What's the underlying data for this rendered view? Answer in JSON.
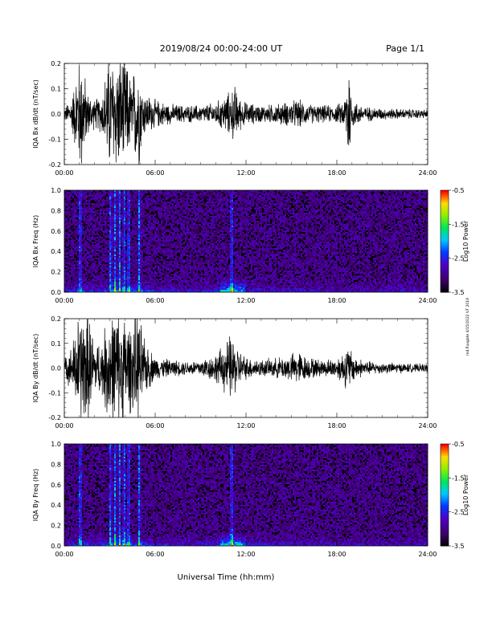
{
  "header": {
    "title": "2019/08/24  00:00-24:00 UT",
    "page": "Page 1/1"
  },
  "xaxis": {
    "label": "Universal Time (hh:mm)",
    "range_hours": [
      0,
      24
    ],
    "ticks": [
      0,
      6,
      12,
      18,
      24
    ],
    "tick_labels": [
      "00:00",
      "06:00",
      "12:00",
      "18:00",
      "24:00"
    ]
  },
  "side_note": "md.fluxgate 4/15/2022 UT 2019",
  "chart_data": [
    {
      "type": "line",
      "ylabel": "IQA Bx dB/dt (nT/sec)",
      "ylim": [
        -0.2,
        0.2
      ],
      "yticks": [
        -0.2,
        -0.1,
        0.0,
        0.1,
        0.2
      ],
      "ytick_labels": [
        "-0.2",
        "-0.1",
        "0.0",
        "0.1",
        "0.2"
      ],
      "grid": false,
      "series": [
        {
          "x": [
            0,
            0.5,
            1.0,
            1.2,
            1.5,
            2.0,
            2.5,
            2.9,
            3.2,
            3.6,
            4.0,
            4.4,
            4.9,
            5.2,
            6.0,
            7.0,
            8.0,
            9.0,
            10.0,
            10.5,
            11.0,
            11.3,
            11.5,
            12.0,
            13.0,
            14.0,
            15.0,
            15.5,
            16.0,
            17.0,
            18.0,
            18.5,
            18.8,
            19.0,
            19.5,
            20.0,
            21.0,
            22.0,
            23.0,
            24.0
          ],
          "amplitude": [
            0.02,
            0.06,
            0.2,
            0.2,
            0.08,
            0.05,
            0.07,
            0.2,
            0.2,
            0.2,
            0.2,
            0.12,
            0.2,
            0.08,
            0.05,
            0.035,
            0.03,
            0.03,
            0.04,
            0.06,
            0.08,
            0.1,
            0.06,
            0.04,
            0.03,
            0.035,
            0.045,
            0.05,
            0.035,
            0.03,
            0.03,
            0.05,
            0.2,
            0.05,
            0.035,
            0.025,
            0.02,
            0.018,
            0.017,
            0.015
          ]
        }
      ]
    },
    {
      "type": "heatmap",
      "ylabel": "IQA Bx Freq (Hz)",
      "ylim": [
        0.0,
        1.0
      ],
      "yticks": [
        0.0,
        0.2,
        0.4,
        0.6,
        0.8,
        1.0
      ],
      "ytick_labels": [
        "0.0",
        "0.2",
        "0.4",
        "0.6",
        "0.8",
        "1.0"
      ],
      "colorbar": {
        "label": "Log10 Power",
        "range": [
          -3.5,
          -0.5
        ],
        "ticks": [
          -0.5,
          -1.5,
          -2.5,
          -3.5
        ],
        "tick_labels": [
          "-0.5",
          "-1.5",
          "-2.5",
          "-3.5"
        ]
      },
      "bursts_hours": [
        1.0,
        3.0,
        3.3,
        3.6,
        3.9,
        4.2,
        4.9,
        11.0
      ]
    },
    {
      "type": "line",
      "ylabel": "IQA By dB/dt (nT/sec)",
      "ylim": [
        -0.2,
        0.2
      ],
      "yticks": [
        -0.2,
        -0.1,
        0.0,
        0.1,
        0.2
      ],
      "ytick_labels": [
        "-0.2",
        "-0.1",
        "0.0",
        "0.1",
        "0.2"
      ],
      "grid": false,
      "series": [
        {
          "x": [
            0,
            0.5,
            1.0,
            1.3,
            1.6,
            2.0,
            2.5,
            2.9,
            3.2,
            3.6,
            4.0,
            4.4,
            4.9,
            5.3,
            6.0,
            7.0,
            8.0,
            9.0,
            10.0,
            10.5,
            11.0,
            11.3,
            11.6,
            12.0,
            13.0,
            14.0,
            15.0,
            15.5,
            16.0,
            17.0,
            18.0,
            18.4,
            18.8,
            19.2,
            20.0,
            21.0,
            22.0,
            23.0,
            24.0
          ],
          "amplitude": [
            0.03,
            0.08,
            0.2,
            0.2,
            0.2,
            0.09,
            0.1,
            0.2,
            0.2,
            0.2,
            0.2,
            0.15,
            0.2,
            0.1,
            0.04,
            0.03,
            0.025,
            0.03,
            0.05,
            0.08,
            0.12,
            0.09,
            0.06,
            0.04,
            0.03,
            0.035,
            0.05,
            0.06,
            0.04,
            0.03,
            0.035,
            0.06,
            0.08,
            0.04,
            0.025,
            0.02,
            0.018,
            0.015,
            0.015
          ]
        }
      ]
    },
    {
      "type": "heatmap",
      "ylabel": "IQA By Freq (Hz)",
      "ylim": [
        0.0,
        1.0
      ],
      "yticks": [
        0.0,
        0.2,
        0.4,
        0.6,
        0.8,
        1.0
      ],
      "ytick_labels": [
        "0.0",
        "0.2",
        "0.4",
        "0.6",
        "0.8",
        "1.0"
      ],
      "colorbar": {
        "label": "Log10 Power",
        "range": [
          -3.5,
          -0.5
        ],
        "ticks": [
          -0.5,
          -1.5,
          -2.5,
          -3.5
        ],
        "tick_labels": [
          "-0.5",
          "-1.5",
          "-2.5",
          "-3.5"
        ]
      },
      "bursts_hours": [
        1.0,
        3.0,
        3.3,
        3.6,
        3.9,
        4.2,
        4.9,
        11.0
      ]
    }
  ]
}
